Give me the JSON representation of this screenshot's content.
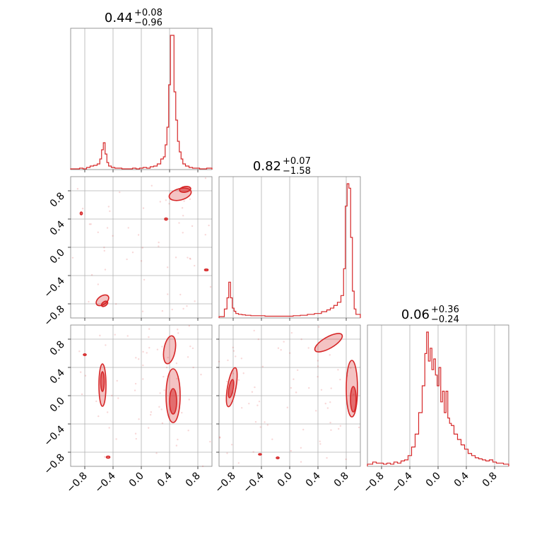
{
  "colors": {
    "series": "#d62728",
    "frame": "#808080",
    "grid": "#b0b0b0"
  },
  "titles": [
    {
      "value": "0.44",
      "plus": "+0.08",
      "minus": "−0.96"
    },
    {
      "value": "0.82",
      "plus": "+0.07",
      "minus": "−1.58"
    },
    {
      "value": "0.06",
      "plus": "+0.36",
      "minus": "−0.24"
    }
  ],
  "chart_data": {
    "type": "corner",
    "n_params": 3,
    "range": [
      -1,
      1
    ],
    "ticks": [
      -0.8,
      -0.4,
      0.0,
      0.4,
      0.8
    ],
    "tick_labels": [
      "−0.8",
      "−0.4",
      "0.0",
      "0.4",
      "0.8"
    ],
    "grid": true,
    "histograms": [
      {
        "param": 0,
        "bin_centers": [
          -0.9,
          -0.85,
          -0.8,
          -0.75,
          -0.7,
          -0.65,
          -0.6,
          -0.575,
          -0.55,
          -0.525,
          -0.5,
          -0.475,
          -0.45,
          -0.4,
          -0.35,
          -0.3,
          -0.25,
          -0.2,
          -0.15,
          -0.1,
          -0.05,
          0.0,
          0.05,
          0.1,
          0.15,
          0.2,
          0.25,
          0.3,
          0.325,
          0.35,
          0.375,
          0.4,
          0.425,
          0.45,
          0.475,
          0.5,
          0.525,
          0.55,
          0.575,
          0.6,
          0.65,
          0.7,
          0.75,
          0.8,
          0.85,
          0.9,
          0.95
        ],
        "counts": [
          1,
          2,
          1,
          3,
          5,
          6,
          8,
          15,
          28,
          38,
          22,
          10,
          5,
          3,
          2,
          2,
          1,
          1,
          1,
          2,
          1,
          2,
          3,
          2,
          4,
          5,
          8,
          15,
          18,
          35,
          60,
          120,
          190,
          190,
          110,
          70,
          40,
          25,
          15,
          8,
          5,
          3,
          2,
          2,
          1,
          1,
          2
        ]
      },
      {
        "param": 1,
        "bin_centers": [
          -0.95,
          -0.9,
          -0.875,
          -0.85,
          -0.825,
          -0.8,
          -0.775,
          -0.75,
          -0.7,
          -0.65,
          -0.6,
          -0.5,
          -0.4,
          -0.3,
          -0.2,
          -0.1,
          0.0,
          0.1,
          0.2,
          0.3,
          0.4,
          0.5,
          0.55,
          0.6,
          0.65,
          0.7,
          0.75,
          0.775,
          0.8,
          0.825,
          0.85,
          0.875,
          0.9,
          0.925,
          0.95
        ],
        "counts": [
          3,
          20,
          45,
          80,
          45,
          22,
          15,
          10,
          8,
          7,
          6,
          5,
          5,
          4,
          4,
          4,
          4,
          5,
          6,
          8,
          10,
          14,
          18,
          22,
          28,
          35,
          50,
          110,
          250,
          300,
          290,
          180,
          60,
          20,
          8
        ]
      },
      {
        "param": 2,
        "bin_centers": [
          -0.95,
          -0.9,
          -0.85,
          -0.8,
          -0.75,
          -0.7,
          -0.65,
          -0.6,
          -0.55,
          -0.5,
          -0.45,
          -0.4,
          -0.35,
          -0.3,
          -0.25,
          -0.2,
          -0.175,
          -0.15,
          -0.125,
          -0.1,
          -0.075,
          -0.05,
          -0.025,
          0.0,
          0.025,
          0.05,
          0.075,
          0.1,
          0.125,
          0.15,
          0.175,
          0.2,
          0.25,
          0.3,
          0.35,
          0.4,
          0.45,
          0.5,
          0.55,
          0.6,
          0.65,
          0.7,
          0.75,
          0.8,
          0.85,
          0.9,
          0.95
        ],
        "counts": [
          2,
          4,
          3,
          3,
          2,
          3,
          2,
          4,
          3,
          5,
          6,
          10,
          18,
          30,
          50,
          75,
          105,
          125,
          98,
          110,
          90,
          100,
          85,
          75,
          92,
          60,
          70,
          50,
          70,
          45,
          40,
          38,
          30,
          25,
          20,
          16,
          12,
          10,
          8,
          7,
          6,
          5,
          6,
          4,
          3,
          3,
          2
        ]
      }
    ]
  }
}
